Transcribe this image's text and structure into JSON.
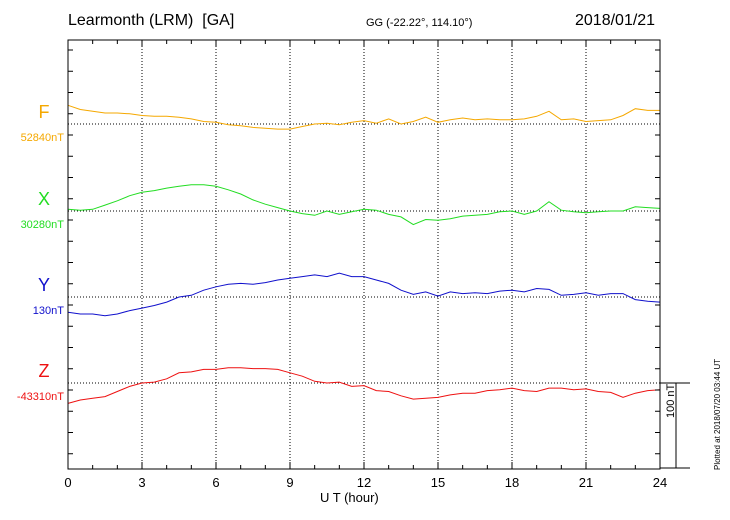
{
  "header": {
    "station": "Learmonth (LRM)  [GA]",
    "coords": "GG (-22.22°, 114.10°)",
    "date": "2018/01/21"
  },
  "footer": {
    "plotted": "Plotted at 2018/07/20 03:44 UT"
  },
  "scale_bar": {
    "label": "100 nT",
    "value": 100
  },
  "chart_data": {
    "type": "line",
    "title": "Learmonth (LRM)  [GA]",
    "xlabel": "U T (hour)",
    "xlim": [
      0,
      24
    ],
    "x_ticks": [
      0,
      3,
      6,
      9,
      12,
      15,
      18,
      21,
      24
    ],
    "x_tick_labels": [
      "0",
      "3",
      "6",
      "9",
      "12",
      "15",
      "18",
      "21",
      "24"
    ],
    "grid": true,
    "series": [
      {
        "name": "F",
        "baseline_label": "52840nT",
        "baseline": 52840,
        "color": "#f5a800",
        "x": [
          0,
          0.5,
          1,
          1.5,
          2,
          2.5,
          3,
          3.5,
          4,
          4.5,
          5,
          5.5,
          6,
          6.5,
          7,
          7.5,
          8,
          8.5,
          9,
          9.5,
          10,
          10.5,
          11,
          11.5,
          12,
          12.5,
          13,
          13.5,
          14,
          14.5,
          15,
          15.5,
          16,
          16.5,
          17,
          17.5,
          18,
          18.5,
          19,
          19.5,
          20,
          20.5,
          21,
          21.5,
          22,
          22.5,
          23,
          23.5,
          24
        ],
        "values": [
          52862,
          52857,
          52855,
          52853,
          52853,
          52852,
          52850,
          52849,
          52849,
          52848,
          52846,
          52843,
          52842,
          52839,
          52838,
          52836,
          52835,
          52834,
          52834,
          52837,
          52840,
          52841,
          52839,
          52842,
          52844,
          52841,
          52846,
          52840,
          52843,
          52848,
          52842,
          52845,
          52847,
          52845,
          52846,
          52845,
          52845,
          52846,
          52849,
          52855,
          52845,
          52846,
          52843,
          52844,
          52845,
          52850,
          52858,
          52856,
          52856
        ]
      },
      {
        "name": "X",
        "baseline_label": "30280nT",
        "baseline": 30280,
        "color": "#22dd22",
        "x": [
          0,
          0.5,
          1,
          1.5,
          2,
          2.5,
          3,
          3.5,
          4,
          4.5,
          5,
          5.5,
          6,
          6.5,
          7,
          7.5,
          8,
          8.5,
          9,
          9.5,
          10,
          10.5,
          11,
          11.5,
          12,
          12.5,
          13,
          13.5,
          14,
          14.5,
          15,
          15.5,
          16,
          16.5,
          17,
          17.5,
          18,
          18.5,
          19,
          19.5,
          20,
          20.5,
          21,
          21.5,
          22,
          22.5,
          23,
          23.5,
          24
        ],
        "values": [
          30282,
          30281,
          30282,
          30287,
          30292,
          30298,
          30302,
          30304,
          30307,
          30309,
          30311,
          30311,
          30309,
          30305,
          30300,
          30293,
          30288,
          30284,
          30280,
          30277,
          30275,
          30280,
          30276,
          30279,
          30282,
          30281,
          30276,
          30273,
          30264,
          30270,
          30269,
          30271,
          30274,
          30275,
          30276,
          30279,
          30280,
          30276,
          30280,
          30291,
          30281,
          30279,
          30278,
          30279,
          30280,
          30280,
          30285,
          30284,
          30283
        ]
      },
      {
        "name": "Y",
        "baseline_label": "130nT",
        "baseline": 130,
        "color": "#1010cc",
        "x": [
          0,
          0.5,
          1,
          1.5,
          2,
          2.5,
          3,
          3.5,
          4,
          4.5,
          5,
          5.5,
          6,
          6.5,
          7,
          7.5,
          8,
          8.5,
          9,
          9.5,
          10,
          10.5,
          11,
          11.5,
          12,
          12.5,
          13,
          13.5,
          14,
          14.5,
          15,
          15.5,
          16,
          16.5,
          17,
          17.5,
          18,
          18.5,
          19,
          19.5,
          20,
          20.5,
          21,
          21.5,
          22,
          22.5,
          23,
          23.5,
          24
        ],
        "values": [
          112,
          110,
          110,
          108,
          110,
          114,
          117,
          120,
          124,
          130,
          132,
          138,
          142,
          145,
          146,
          145,
          147,
          150,
          152,
          154,
          156,
          154,
          158,
          154,
          154,
          150,
          146,
          138,
          133,
          136,
          131,
          136,
          134,
          135,
          134,
          137,
          138,
          136,
          140,
          139,
          132,
          133,
          135,
          132,
          134,
          134,
          127,
          125,
          124
        ]
      },
      {
        "name": "Z",
        "baseline_label": "-43310nT",
        "baseline": -43310,
        "color": "#ee1111",
        "x": [
          0,
          0.5,
          1,
          1.5,
          2,
          2.5,
          3,
          3.5,
          4,
          4.5,
          5,
          5.5,
          6,
          6.5,
          7,
          7.5,
          8,
          8.5,
          9,
          9.5,
          10,
          10.5,
          11,
          11.5,
          12,
          12.5,
          13,
          13.5,
          14,
          14.5,
          15,
          15.5,
          16,
          16.5,
          17,
          17.5,
          18,
          18.5,
          19,
          19.5,
          20,
          20.5,
          21,
          21.5,
          22,
          22.5,
          23,
          23.5,
          24
        ],
        "values": [
          -43334,
          -43330,
          -43328,
          -43326,
          -43320,
          -43314,
          -43310,
          -43309,
          -43305,
          -43298,
          -43297,
          -43294,
          -43294,
          -43292,
          -43292,
          -43293,
          -43293,
          -43294,
          -43298,
          -43302,
          -43308,
          -43310,
          -43309,
          -43314,
          -43313,
          -43319,
          -43320,
          -43325,
          -43329,
          -43328,
          -43327,
          -43324,
          -43322,
          -43322,
          -43319,
          -43318,
          -43316,
          -43319,
          -43320,
          -43316,
          -43316,
          -43318,
          -43317,
          -43320,
          -43321,
          -43327,
          -43322,
          -43319,
          -43318
        ]
      }
    ]
  }
}
